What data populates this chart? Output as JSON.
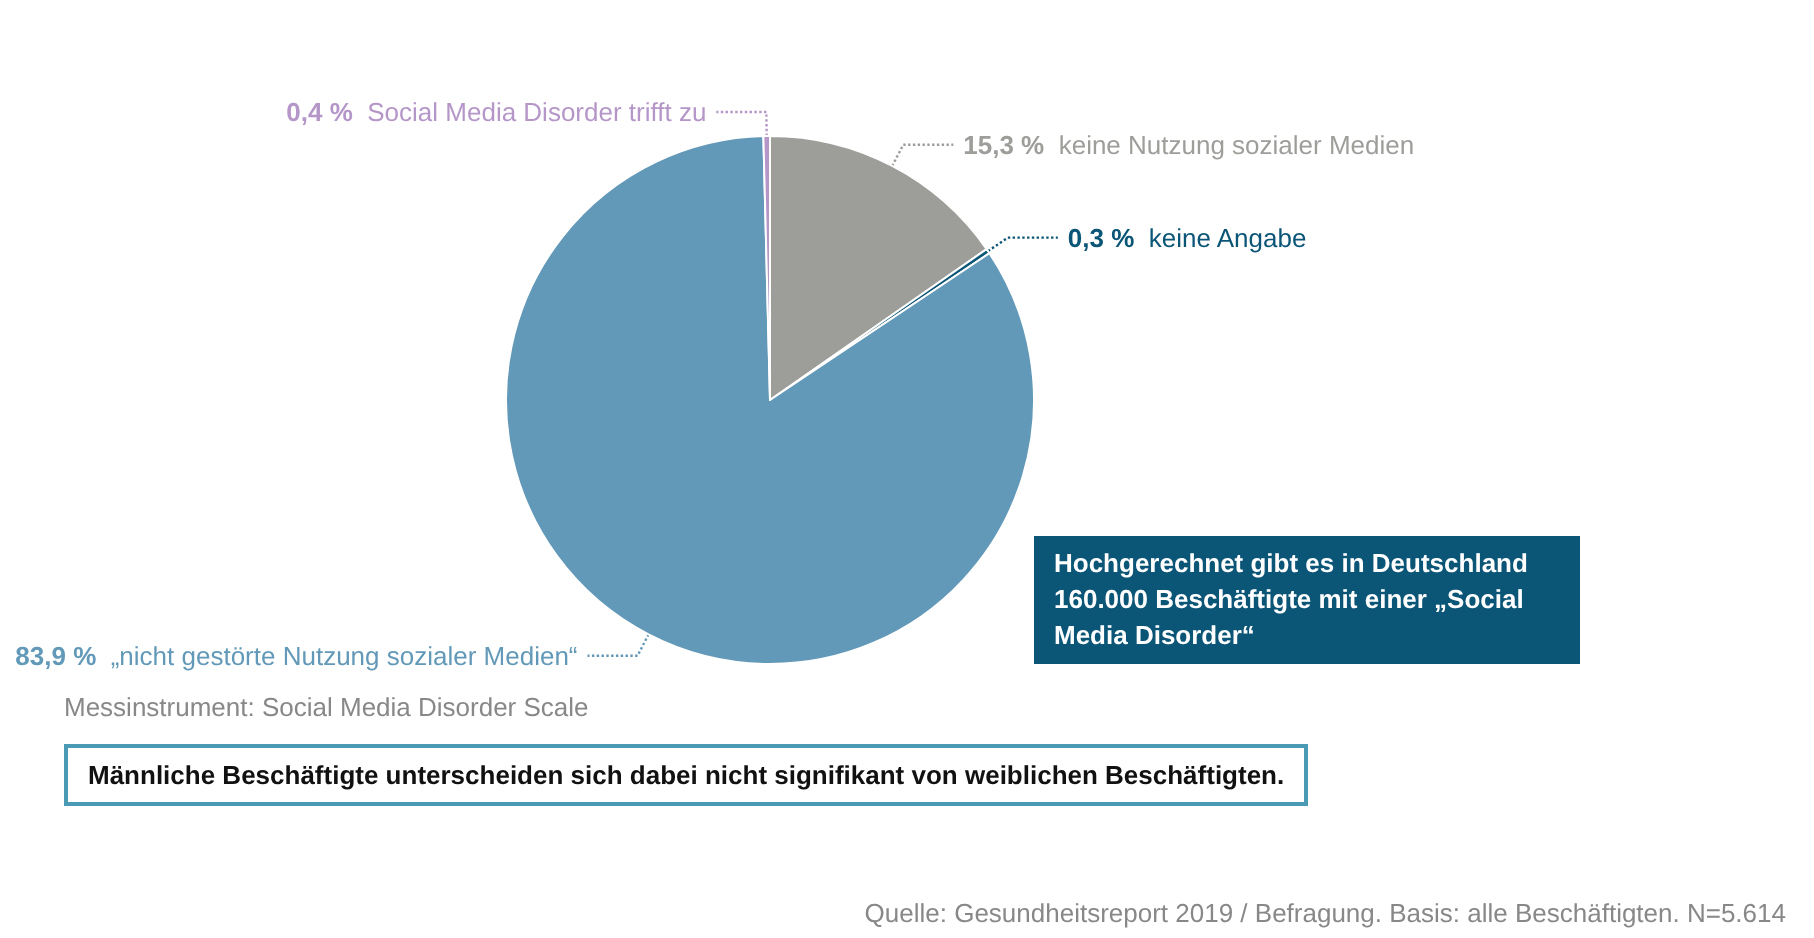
{
  "chart_data": {
    "type": "pie",
    "categories": [
      "keine Nutzung sozialer Medien",
      "keine Angabe",
      "„nicht gestörte Nutzung sozialer Medien“",
      "Social Media Disorder trifft zu"
    ],
    "values": [
      15.3,
      0.3,
      83.9,
      0.4
    ],
    "colors": [
      "#9d9d9a",
      "#0b5577",
      "#6399b8",
      "#b596c8"
    ],
    "value_labels": [
      "15,3 %",
      "0,3 %",
      "83,9 %",
      "0,4 %"
    ],
    "legend": false,
    "annotations": [
      "Hochgerechnet gibt es in Deutschland 160.000 Beschäftigte mit einer „Social Media Disorder“",
      "Messinstrument: Social Media Disorder Scale",
      "Männliche Beschäftigte unterscheiden sich dabei nicht signifikant von weiblichen Beschäftigten.",
      "Quelle: Gesundheitsreport 2019 / Befragung. Basis: alle Beschäftigten. N=5.614"
    ]
  }
}
